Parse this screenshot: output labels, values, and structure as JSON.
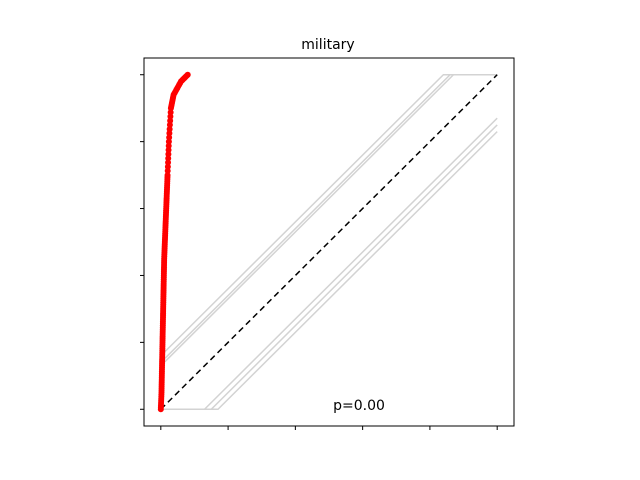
{
  "chart_data": {
    "type": "scatter",
    "title": "military",
    "annotation": "p=0.00",
    "xlim": [
      -0.05,
      1.05
    ],
    "ylim": [
      -0.05,
      1.05
    ],
    "xticks": [
      0,
      0.2,
      0.4,
      0.6,
      0.8,
      1.0
    ],
    "yticks": [
      0,
      0.2,
      0.4,
      0.6,
      0.8,
      1.0
    ],
    "tick_labels_visible": false,
    "grid": false,
    "reference_line": {
      "x": [
        0,
        1
      ],
      "y": [
        0,
        1
      ],
      "style": "dashed",
      "color": "#000000"
    },
    "confidence_bands": [
      {
        "offset": 0.16,
        "color": "#d3d3d3"
      },
      {
        "offset": 0.14,
        "color": "#d3d3d3"
      },
      {
        "offset": 0.13,
        "color": "#d3d3d3"
      },
      {
        "offset": -0.13,
        "color": "#d3d3d3"
      },
      {
        "offset": -0.15,
        "color": "#d3d3d3"
      },
      {
        "offset": -0.17,
        "color": "#d3d3d3"
      }
    ],
    "series": [
      {
        "color": "#ff0000",
        "x": [
          0.0,
          0.002,
          0.003,
          0.004,
          0.005,
          0.006,
          0.007,
          0.008,
          0.009,
          0.01,
          0.012,
          0.014,
          0.016,
          0.018,
          0.02,
          0.024,
          0.03,
          0.038,
          0.06,
          0.08
        ],
        "y": [
          0.0,
          0.05,
          0.1,
          0.15,
          0.2,
          0.25,
          0.3,
          0.35,
          0.4,
          0.45,
          0.5,
          0.55,
          0.6,
          0.65,
          0.7,
          0.8,
          0.9,
          0.94,
          0.98,
          1.0
        ]
      }
    ]
  }
}
